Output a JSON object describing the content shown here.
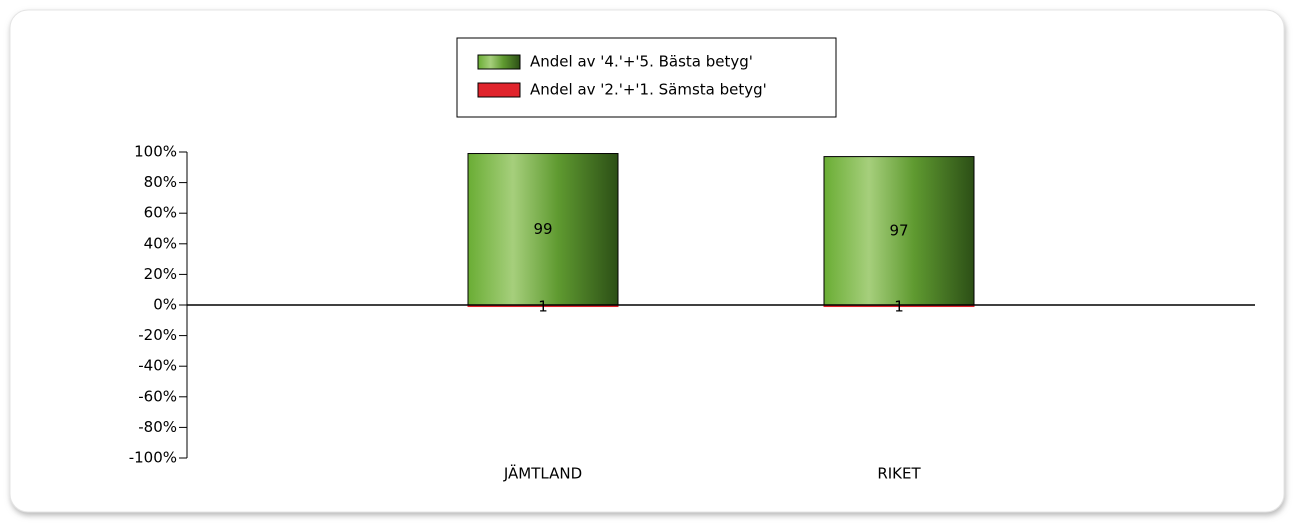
{
  "chart_data": {
    "type": "bar",
    "categories": [
      "JÄMTLAND",
      "RIKET"
    ],
    "series": [
      {
        "name": "Andel av '4.'+'5. Bästa betyg'",
        "color": "#5aa02c",
        "values": [
          99,
          97
        ]
      },
      {
        "name": "Andel av '2.'+'1. Sämsta betyg'",
        "color": "#e0242c",
        "values": [
          -1,
          -1
        ],
        "value_labels": [
          "1",
          "1"
        ]
      }
    ],
    "ylim": [
      -100,
      100
    ],
    "yticks": [
      {
        "value": 100,
        "label": "100%"
      },
      {
        "value": 80,
        "label": "80%"
      },
      {
        "value": 60,
        "label": "60%"
      },
      {
        "value": 40,
        "label": "40%"
      },
      {
        "value": 20,
        "label": "20%"
      },
      {
        "value": 0,
        "label": "0%"
      },
      {
        "value": -20,
        "label": "-20%"
      },
      {
        "value": -40,
        "label": "-40%"
      },
      {
        "value": -60,
        "label": "-60%"
      },
      {
        "value": -80,
        "label": "-80%"
      },
      {
        "value": -100,
        "label": "-100%"
      }
    ],
    "legend": "top"
  }
}
